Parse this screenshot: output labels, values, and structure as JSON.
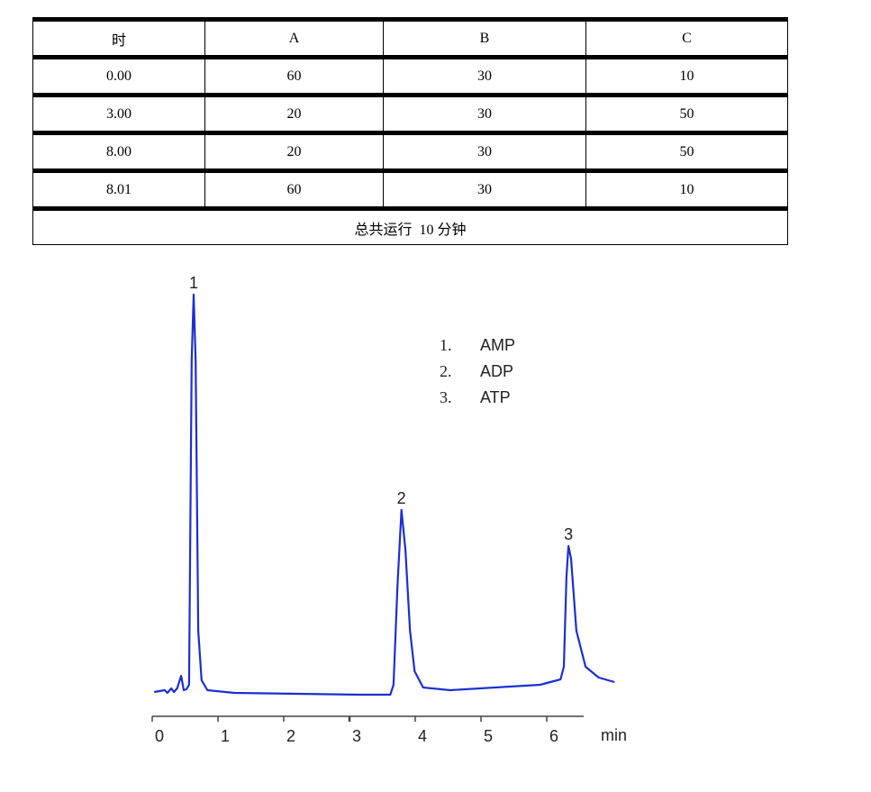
{
  "table": {
    "headers": [
      "时",
      "A",
      "B",
      "C"
    ],
    "rows": [
      [
        "0.00",
        "60",
        "30",
        "10"
      ],
      [
        "3.00",
        "20",
        "30",
        "50"
      ],
      [
        "8.00",
        "20",
        "30",
        "50"
      ],
      [
        "8.01",
        "60",
        "30",
        "10"
      ]
    ],
    "footer": "总共运行  10 分钟"
  },
  "chart_data": {
    "type": "line",
    "xlabel": "min",
    "xlim": [
      0,
      7.1
    ],
    "xticks": [
      "0",
      "1",
      "2",
      "3",
      "4",
      "5",
      "6"
    ],
    "y_axis_shown": false,
    "line_color": "#1c2fd0",
    "x": [
      0.03,
      0.19,
      0.23,
      0.29,
      0.33,
      0.38,
      0.44,
      0.48,
      0.52,
      0.56,
      0.6,
      0.63,
      0.66,
      0.7,
      0.75,
      0.84,
      1.25,
      3.16,
      3.62,
      3.67,
      3.73,
      3.79,
      3.85,
      3.92,
      3.99,
      4.12,
      4.53,
      5.9,
      6.21,
      6.26,
      6.3,
      6.33,
      6.37,
      6.45,
      6.59,
      6.79,
      7.03
    ],
    "y": [
      0,
      2,
      -1,
      4,
      0,
      4,
      18,
      2,
      3,
      8,
      368,
      441,
      368,
      68,
      13,
      2,
      -1,
      -3,
      -3,
      8,
      118,
      202,
      158,
      68,
      23,
      5,
      2,
      8,
      14,
      28,
      128,
      162,
      148,
      68,
      28,
      16,
      11
    ],
    "peaks": [
      {
        "label": "1",
        "x": 0.63,
        "y": 441
      },
      {
        "label": "2",
        "x": 3.79,
        "y": 202
      },
      {
        "label": "3",
        "x": 6.33,
        "y": 162
      }
    ],
    "legend": [
      {
        "num": "1.",
        "name": "AMP"
      },
      {
        "num": "2.",
        "name": "ADP"
      },
      {
        "num": "3.",
        "name": "ATP"
      }
    ],
    "legend_position": "top-right"
  }
}
